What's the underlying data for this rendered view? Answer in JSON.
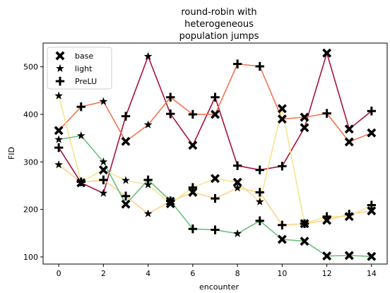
{
  "chart_data": {
    "type": "line",
    "title": [
      "round-robin with",
      "heterogeneous",
      "population jumps"
    ],
    "xlabel": "encounter",
    "ylabel": "FID",
    "xlim": [
      -0.7,
      14.7
    ],
    "ylim": [
      85,
      550
    ],
    "xticks": [
      0,
      2,
      4,
      6,
      8,
      10,
      12,
      14
    ],
    "yticks": [
      100,
      200,
      300,
      400,
      500
    ],
    "legend": {
      "position": "top-left",
      "entries": [
        {
          "label": "base",
          "marker": "X"
        },
        {
          "label": "light",
          "marker": "star"
        },
        {
          "label": "PreLU",
          "marker": "plus"
        }
      ]
    },
    "series": [
      {
        "color": "#a8123d",
        "markers": [
          "plus",
          "X",
          "star",
          "plus",
          "star",
          "plus",
          "X",
          "plus",
          "plus",
          "plus",
          "plus",
          "X",
          "X",
          "X",
          "plus"
        ],
        "values": [
          330,
          256,
          234,
          396,
          522,
          401,
          335,
          436,
          292,
          283,
          291,
          372,
          529,
          369,
          407
        ]
      },
      {
        "color": "#f07650",
        "markers": [
          "X",
          "plus",
          "star",
          "X",
          "star",
          "plus",
          "plus",
          "X",
          "plus",
          "plus",
          "X",
          "X",
          "plus",
          "X",
          "X"
        ],
        "values": [
          366,
          416,
          427,
          343,
          378,
          436,
          400,
          400,
          506,
          501,
          390,
          394,
          402,
          342,
          361
        ]
      },
      {
        "color": "#f6e590",
        "markers": [
          "star",
          "plus",
          "X",
          "star",
          "star",
          "X",
          "plus",
          "X",
          "X",
          "star",
          "X",
          "X",
          "plus",
          "X",
          "plus"
        ],
        "values": [
          439,
          258,
          283,
          261,
          252,
          212,
          246,
          265,
          257,
          216,
          412,
          170,
          185,
          185,
          209
        ]
      },
      {
        "color": "#fcd38a",
        "markers": [
          "star",
          "star",
          "plus",
          "plus",
          "star",
          "X",
          "X",
          "plus",
          "star",
          "plus",
          "plus",
          "plus",
          "X",
          "plus",
          "X"
        ],
        "values": [
          294,
          257,
          262,
          228,
          191,
          217,
          236,
          223,
          245,
          236,
          167,
          170,
          177,
          190,
          197
        ]
      },
      {
        "color": "#6cc07a",
        "markers": [
          "star",
          "star",
          "star",
          "X",
          "plus",
          "plus",
          "plus",
          "plus",
          "star",
          "plus",
          "X",
          "X",
          "X",
          "X",
          "X"
        ],
        "values": [
          347,
          355,
          300,
          211,
          262,
          218,
          159,
          157,
          149,
          176,
          137,
          133,
          102,
          103,
          101
        ]
      }
    ]
  }
}
